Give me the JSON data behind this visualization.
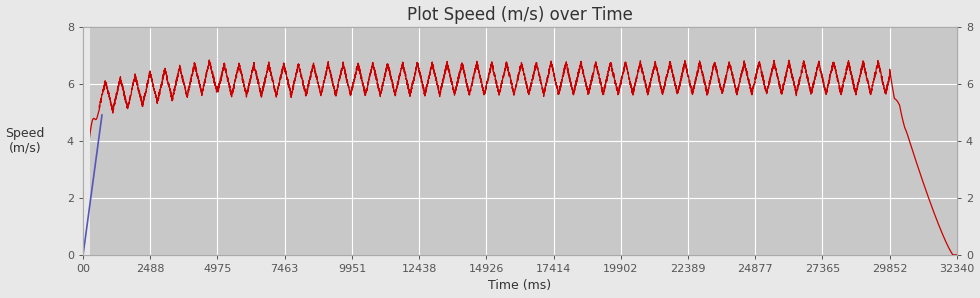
{
  "title": "Plot Speed (m/s) over Time",
  "xlabel": "Time (ms)",
  "ylabel": "Speed\n(m/s)",
  "ylim": [
    0,
    8
  ],
  "xlim": [
    0,
    32340
  ],
  "xtick_labels": [
    "00",
    "2488",
    "4975",
    "7463",
    "9951",
    "12438",
    "14926",
    "17414",
    "19902",
    "22389",
    "24877",
    "27365",
    "29852",
    "32340"
  ],
  "xtick_values": [
    0,
    2488,
    4975,
    7463,
    9951,
    12438,
    14926,
    17414,
    19902,
    22389,
    24877,
    27365,
    29852,
    32340
  ],
  "ytick_values": [
    0,
    2,
    4,
    6,
    8
  ],
  "background_color": "#c8c8c8",
  "outer_background": "#e8e8e8",
  "grid_color": "#ffffff",
  "line_color_red": "#cc0000",
  "line_color_blue": "#5555bb",
  "title_fontsize": 12,
  "axis_label_fontsize": 9,
  "tick_fontsize": 8,
  "total_time_ms": 32340,
  "accel_end_ms": 600,
  "cruise_end_ms": 29852,
  "cruise_speed_mean": 6.1,
  "cruise_osc_amp": 0.55,
  "osc_period_ms": 550,
  "accel_peak_speed": 5.0,
  "decel_end_ms": 32200,
  "white_strip_end_ms": 250
}
